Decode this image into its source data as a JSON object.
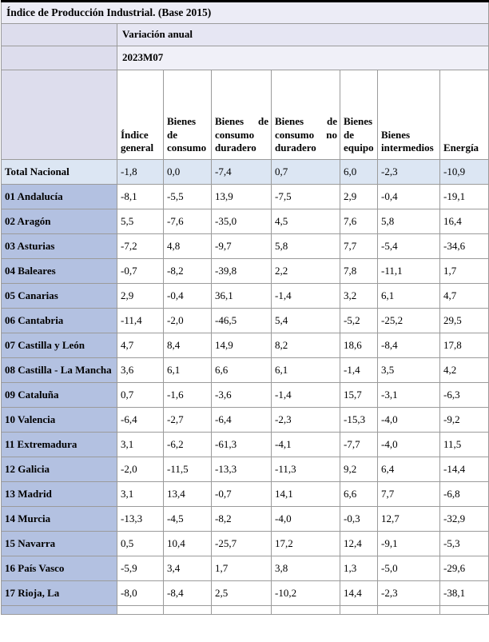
{
  "title": "Índice de Producción Industrial. (Base 2015)",
  "header": {
    "measure": "Variación anual",
    "period": "2023M07"
  },
  "table": {
    "columns": [
      "Índice general",
      "Bienes de consumo",
      "Bienes de consumo duradero",
      "Bienes de consumo no duradero",
      "Bienes de equipo",
      "Bienes intermedios",
      "Energía"
    ],
    "rows": [
      {
        "label": "Total Nacional",
        "values": [
          "-1,8",
          "0,0",
          "-7,4",
          "0,7",
          "6,0",
          "-2,3",
          "-10,9"
        ],
        "total": true
      },
      {
        "label": "01 Andalucía",
        "values": [
          "-8,1",
          "-5,5",
          "13,9",
          "-7,5",
          "2,9",
          "-0,4",
          "-19,1"
        ]
      },
      {
        "label": "02 Aragón",
        "values": [
          "5,5",
          "-7,6",
          "-35,0",
          "4,5",
          "7,6",
          "5,8",
          "16,4"
        ]
      },
      {
        "label": "03 Asturias",
        "values": [
          "-7,2",
          "4,8",
          "-9,7",
          "5,8",
          "7,7",
          "-5,4",
          "-34,6"
        ]
      },
      {
        "label": "04 Baleares",
        "values": [
          "-0,7",
          "-8,2",
          "-39,8",
          "2,2",
          "7,8",
          "-11,1",
          "1,7"
        ]
      },
      {
        "label": "05 Canarias",
        "values": [
          "2,9",
          "-0,4",
          "36,1",
          "-1,4",
          "3,2",
          "6,1",
          "4,7"
        ]
      },
      {
        "label": "06 Cantabria",
        "values": [
          "-11,4",
          "-2,0",
          "-46,5",
          "5,4",
          "-5,2",
          "-25,2",
          "29,5"
        ]
      },
      {
        "label": "07 Castilla y León",
        "values": [
          "4,7",
          "8,4",
          "14,9",
          "8,2",
          "18,6",
          "-8,4",
          "17,8"
        ]
      },
      {
        "label": "08 Castilla - La Mancha",
        "values": [
          "3,6",
          "6,1",
          "6,6",
          "6,1",
          "-1,4",
          "3,5",
          "4,2"
        ]
      },
      {
        "label": "09 Cataluña",
        "values": [
          "0,7",
          "-1,6",
          "-3,6",
          "-1,4",
          "15,7",
          "-3,1",
          "-6,3"
        ]
      },
      {
        "label": "10 Valencia",
        "values": [
          "-6,4",
          "-2,7",
          "-6,4",
          "-2,3",
          "-15,3",
          "-4,0",
          "-9,2"
        ]
      },
      {
        "label": "11 Extremadura",
        "values": [
          "3,1",
          "-6,2",
          "-61,3",
          "-4,1",
          "-7,7",
          "-4,0",
          "11,5"
        ]
      },
      {
        "label": "12 Galicia",
        "values": [
          "-2,0",
          "-11,5",
          "-13,3",
          "-11,3",
          "9,2",
          "6,4",
          "-14,4"
        ]
      },
      {
        "label": "13 Madrid",
        "values": [
          "3,1",
          "13,4",
          "-0,7",
          "14,1",
          "6,6",
          "7,7",
          "-6,8"
        ]
      },
      {
        "label": "14 Murcia",
        "values": [
          "-13,3",
          "-4,5",
          "-8,2",
          "-4,0",
          "-0,3",
          "12,7",
          "-32,9"
        ]
      },
      {
        "label": "15 Navarra",
        "values": [
          "0,5",
          "10,4",
          "-25,7",
          "17,2",
          "12,4",
          "-9,1",
          "-5,3"
        ]
      },
      {
        "label": "16 País Vasco",
        "values": [
          "-5,9",
          "3,4",
          "1,7",
          "3,8",
          "1,3",
          "-5,0",
          "-29,6"
        ]
      },
      {
        "label": "17 Rioja, La",
        "values": [
          "-8,0",
          "-8,4",
          "2,5",
          "-10,2",
          "14,4",
          "-2,3",
          "-38,1"
        ]
      }
    ]
  },
  "colors": {
    "row_label_bg": "#b3c1e1",
    "total_row_bg": "#dce6f3",
    "title_band_bg": "#ececf6",
    "measure_band_bg": "#e6e6f3",
    "period_band_bg": "#f0f0f8",
    "corner_cell_bg": "#dddded",
    "gridline": "#9b9b9b",
    "outer_border": "#000000"
  }
}
